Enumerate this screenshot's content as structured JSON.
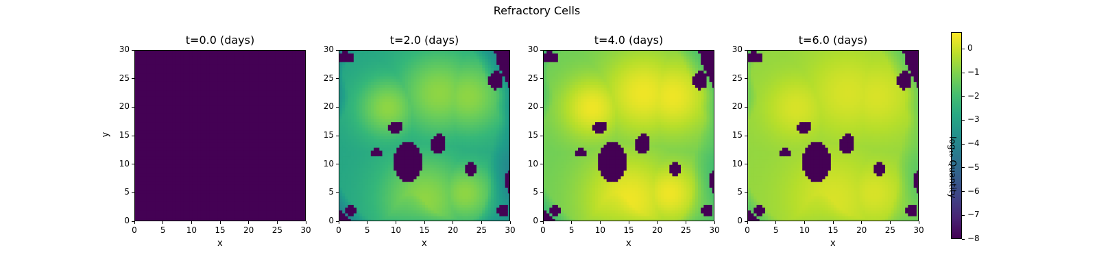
{
  "chart_data": {
    "type": "heatmap",
    "title": "Refractory Cells",
    "panels": [
      {
        "title": "t=0.0 (days)",
        "time_days": 0.0,
        "state": "empty"
      },
      {
        "title": "t=2.0 (days)",
        "time_days": 2.0,
        "state": "growing"
      },
      {
        "title": "t=4.0 (days)",
        "time_days": 4.0,
        "state": "grown"
      },
      {
        "title": "t=6.0 (days)",
        "time_days": 6.0,
        "state": "saturated"
      }
    ],
    "xlabel": "x",
    "ylabel": "y",
    "xlim": [
      0,
      30
    ],
    "ylim": [
      0,
      30
    ],
    "xticks": [
      "0",
      "5",
      "10",
      "15",
      "20",
      "25",
      "30"
    ],
    "yticks": [
      "0",
      "5",
      "10",
      "15",
      "20",
      "25",
      "30"
    ],
    "colorbar": {
      "label": "log₁₀ Quantity",
      "range": [
        -8,
        0.7
      ],
      "ticks": [
        "0",
        "−1",
        "−2",
        "−3",
        "−4",
        "−5",
        "−6",
        "−7",
        "−8"
      ],
      "colormap": "viridis"
    },
    "colors": {
      "background": "#440154",
      "max": "#fde725"
    }
  }
}
